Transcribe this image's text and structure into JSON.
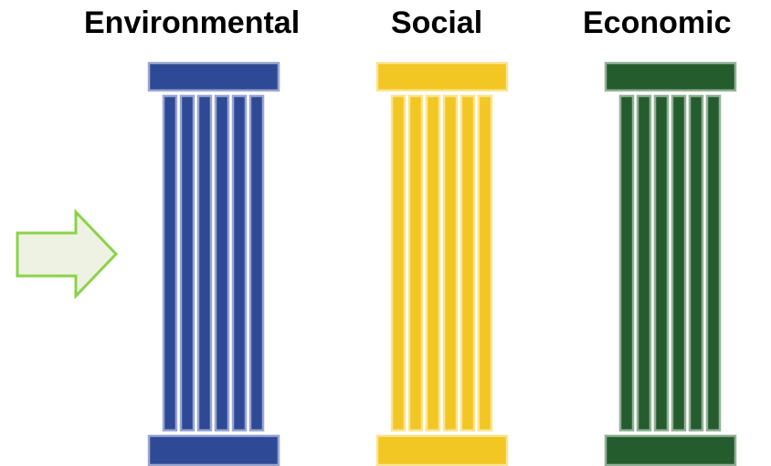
{
  "pillars": [
    {
      "label": "Environmental",
      "color": "#2e4a96",
      "edge": "#9aa6cf"
    },
    {
      "label": "Social",
      "color": "#f2c623",
      "edge": "#fae592"
    },
    {
      "label": "Economic",
      "color": "#245c2e",
      "edge": "#92b096"
    }
  ],
  "arrow": {
    "fill": "#eef2e2",
    "stroke": "#8cd24a"
  }
}
